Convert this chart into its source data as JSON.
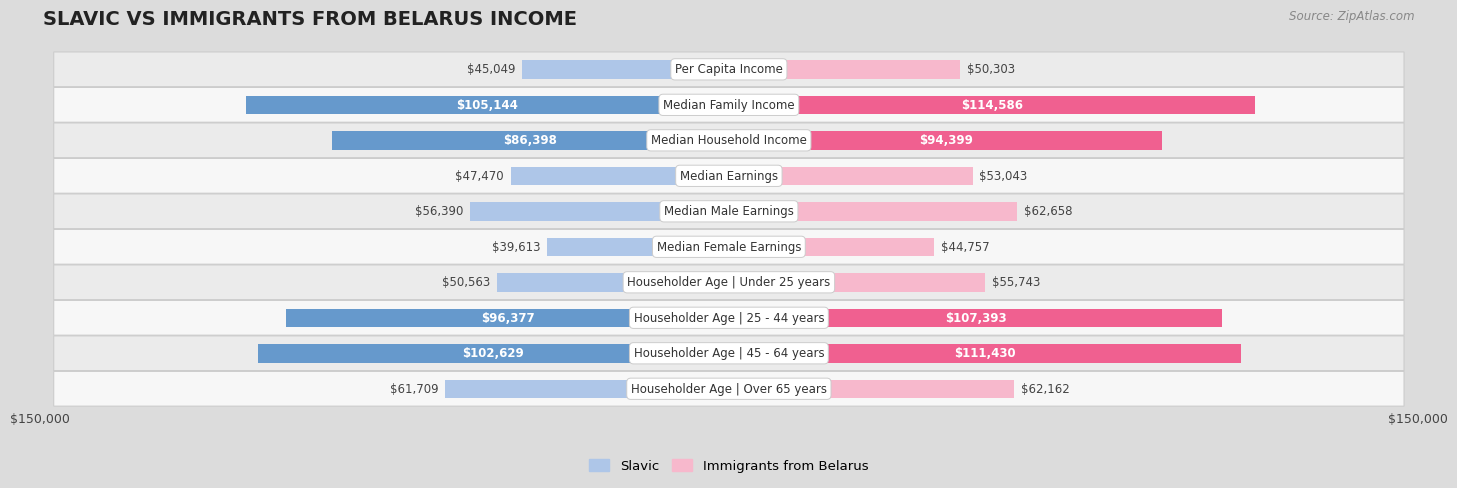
{
  "title": "SLAVIC VS IMMIGRANTS FROM BELARUS INCOME",
  "source": "Source: ZipAtlas.com",
  "categories": [
    "Per Capita Income",
    "Median Family Income",
    "Median Household Income",
    "Median Earnings",
    "Median Male Earnings",
    "Median Female Earnings",
    "Householder Age | Under 25 years",
    "Householder Age | 25 - 44 years",
    "Householder Age | 45 - 64 years",
    "Householder Age | Over 65 years"
  ],
  "slavic_values": [
    45049,
    105144,
    86398,
    47470,
    56390,
    39613,
    50563,
    96377,
    102629,
    61709
  ],
  "belarus_values": [
    50303,
    114586,
    94399,
    53043,
    62658,
    44757,
    55743,
    107393,
    111430,
    62162
  ],
  "slavic_labels": [
    "$45,049",
    "$105,144",
    "$86,398",
    "$47,470",
    "$56,390",
    "$39,613",
    "$50,563",
    "$96,377",
    "$102,629",
    "$61,709"
  ],
  "belarus_labels": [
    "$50,303",
    "$114,586",
    "$94,399",
    "$53,043",
    "$62,658",
    "$44,757",
    "$55,743",
    "$107,393",
    "$111,430",
    "$62,162"
  ],
  "slavic_color_light": "#aec6e8",
  "slavic_color_dark": "#6699cc",
  "belarus_color_light": "#f7b8cc",
  "belarus_color_dark": "#f06090",
  "slavic_dark_rows": [
    1,
    2,
    7,
    8
  ],
  "belarus_dark_rows": [
    1,
    2,
    7,
    8
  ],
  "slavic_label_inside": [
    false,
    true,
    true,
    false,
    false,
    false,
    false,
    true,
    true,
    false
  ],
  "belarus_label_inside": [
    false,
    true,
    true,
    false,
    false,
    false,
    false,
    true,
    true,
    false
  ],
  "max_value": 150000,
  "row_bg_even": "#f7f7f7",
  "row_bg_odd": "#ebebeb",
  "label_fontsize": 8.5,
  "cat_fontsize": 8.5,
  "title_fontsize": 14,
  "legend_slavic": "Slavic",
  "legend_belarus": "Immigrants from Belarus",
  "xlabel_left": "$150,000",
  "xlabel_right": "$150,000"
}
